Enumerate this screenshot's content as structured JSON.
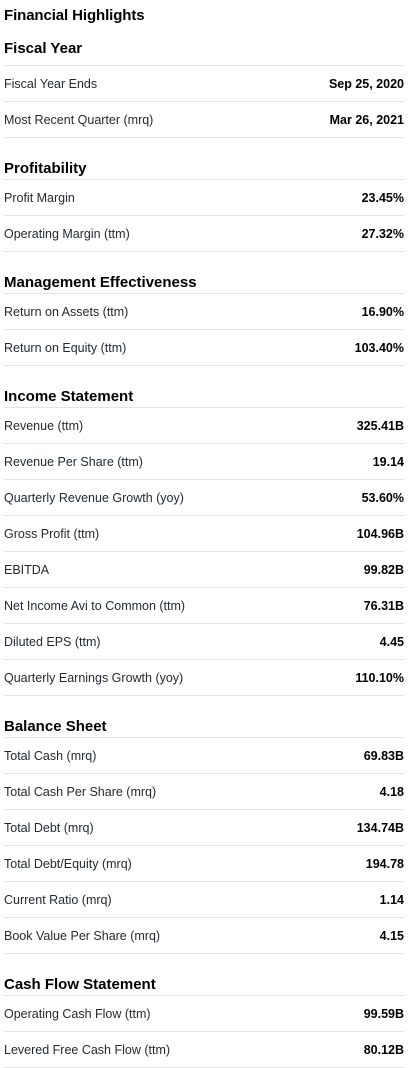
{
  "page_title": "Financial Highlights",
  "sections": [
    {
      "title": "Fiscal Year",
      "rows": [
        {
          "label": "Fiscal Year Ends",
          "value": "Sep 25, 2020"
        },
        {
          "label": "Most Recent Quarter (mrq)",
          "value": "Mar 26, 2021"
        }
      ]
    },
    {
      "title": "Profitability",
      "rows": [
        {
          "label": "Profit Margin",
          "value": "23.45%"
        },
        {
          "label": "Operating Margin (ttm)",
          "value": "27.32%"
        }
      ]
    },
    {
      "title": "Management Effectiveness",
      "rows": [
        {
          "label": "Return on Assets (ttm)",
          "value": "16.90%"
        },
        {
          "label": "Return on Equity (ttm)",
          "value": "103.40%"
        }
      ]
    },
    {
      "title": "Income Statement",
      "rows": [
        {
          "label": "Revenue (ttm)",
          "value": "325.41B"
        },
        {
          "label": "Revenue Per Share (ttm)",
          "value": "19.14"
        },
        {
          "label": "Quarterly Revenue Growth (yoy)",
          "value": "53.60%"
        },
        {
          "label": "Gross Profit (ttm)",
          "value": "104.96B"
        },
        {
          "label": "EBITDA",
          "value": "99.82B"
        },
        {
          "label": "Net Income Avi to Common (ttm)",
          "value": "76.31B"
        },
        {
          "label": "Diluted EPS (ttm)",
          "value": "4.45"
        },
        {
          "label": "Quarterly Earnings Growth (yoy)",
          "value": "110.10%"
        }
      ]
    },
    {
      "title": "Balance Sheet",
      "rows": [
        {
          "label": "Total Cash (mrq)",
          "value": "69.83B"
        },
        {
          "label": "Total Cash Per Share (mrq)",
          "value": "4.18"
        },
        {
          "label": "Total Debt (mrq)",
          "value": "134.74B"
        },
        {
          "label": "Total Debt/Equity (mrq)",
          "value": "194.78"
        },
        {
          "label": "Current Ratio (mrq)",
          "value": "1.14"
        },
        {
          "label": "Book Value Per Share (mrq)",
          "value": "4.15"
        }
      ]
    },
    {
      "title": "Cash Flow Statement",
      "rows": [
        {
          "label": "Operating Cash Flow (ttm)",
          "value": "99.59B"
        },
        {
          "label": "Levered Free Cash Flow (ttm)",
          "value": "80.12B"
        }
      ]
    }
  ]
}
